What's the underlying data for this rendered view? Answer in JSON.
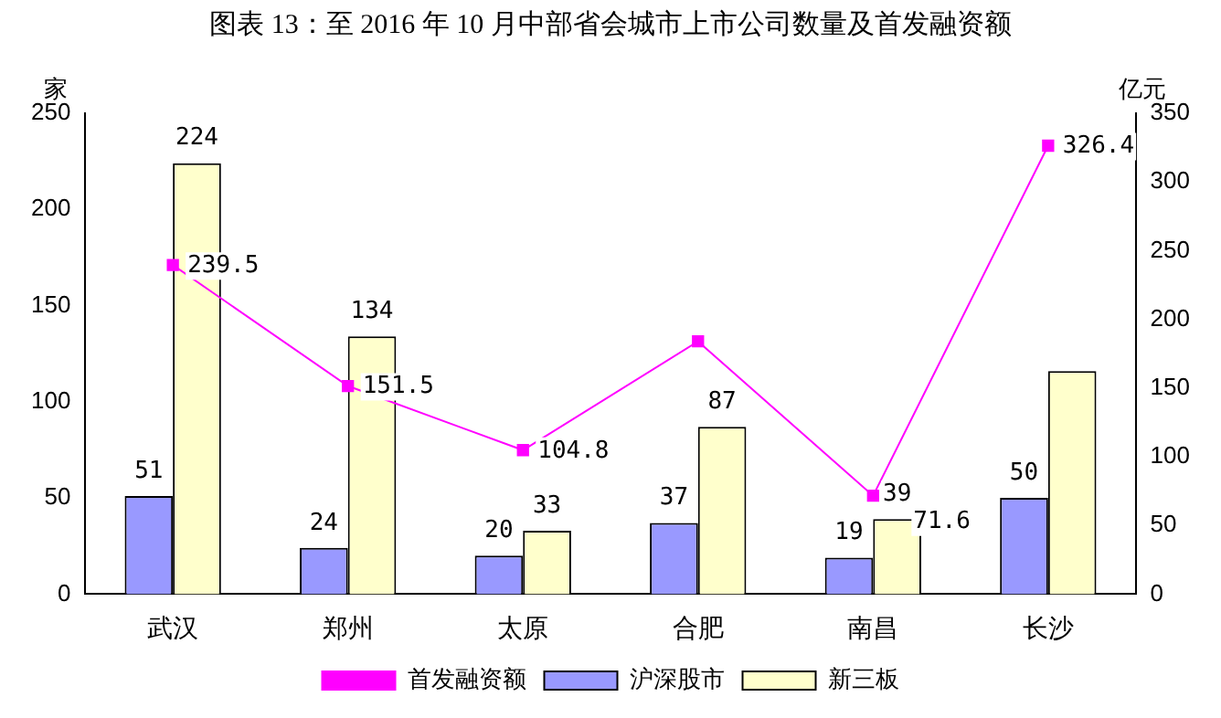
{
  "chart_data": {
    "type": "bar",
    "title": "图表 13：至 2016 年 10 月中部省会城市上市公司数量及首发融资额",
    "ylabel": "家",
    "y2label": "亿元",
    "categories": [
      "武汉",
      "郑州",
      "太原",
      "合肥",
      "南昌",
      "长沙"
    ],
    "series": [
      {
        "name": "沪深股市",
        "color": "#9999ff",
        "values": [
          51,
          24,
          20,
          37,
          19,
          50
        ],
        "value_labels": [
          "51",
          "24",
          "20",
          "37",
          "19",
          "50"
        ]
      },
      {
        "name": "新三板",
        "color": "#ffffcc",
        "values": [
          224,
          134,
          33,
          87,
          39,
          116
        ],
        "value_labels": [
          "224",
          "134",
          "33",
          "87",
          "39",
          null
        ]
      },
      {
        "name": "首发融资额",
        "type": "line",
        "axis": "y2",
        "color": "#ff00ff",
        "marker": "square",
        "values": [
          239.5,
          151.5,
          104.8,
          184,
          71.6,
          326.4
        ],
        "value_labels": [
          "239.5",
          "151.5",
          "104.8",
          null,
          "71.6",
          "326.4"
        ]
      }
    ],
    "ylim": [
      0,
      250
    ],
    "yticks": [
      0,
      50,
      100,
      150,
      200,
      250
    ],
    "y2lim": [
      0,
      350
    ],
    "y2ticks": [
      0,
      50,
      100,
      150,
      200,
      250,
      300,
      350
    ],
    "grid": false,
    "legend": "bottom"
  }
}
